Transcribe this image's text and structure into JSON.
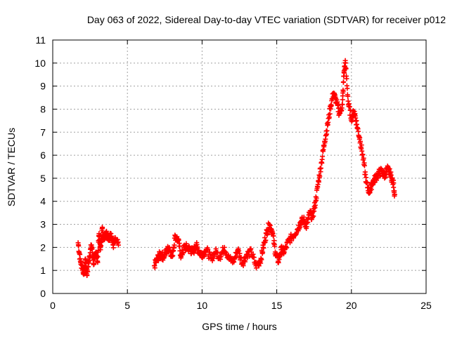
{
  "chart_data": {
    "type": "scatter",
    "title": "Day 063 of 2022, Sidereal Day-to-day VTEC variation (SDTVAR) for receiver p012",
    "xlabel": "GPS time / hours",
    "ylabel": "SDTVAR / TECUs",
    "xlim": [
      0,
      25
    ],
    "ylim": [
      0,
      11
    ],
    "xticks": [
      "0",
      "5",
      "10",
      "15",
      "20",
      "25"
    ],
    "yticks": [
      "0",
      "1",
      "2",
      "3",
      "4",
      "5",
      "6",
      "7",
      "8",
      "9",
      "10",
      "11"
    ],
    "grid": true,
    "marker": "plus",
    "color": "#ff0000",
    "series": [
      {
        "name": "SDTVAR",
        "x": [
          1.7,
          1.85,
          2.0,
          2.1,
          2.2,
          2.3,
          2.45,
          2.6,
          2.75,
          2.9,
          3.0,
          3.1,
          3.2,
          3.3,
          3.45,
          3.6,
          3.75,
          3.9,
          4.05,
          4.2,
          4.4,
          6.8,
          7.0,
          7.2,
          7.4,
          7.6,
          7.8,
          8.0,
          8.2,
          8.4,
          8.6,
          8.8,
          9.0,
          9.2,
          9.4,
          9.6,
          9.8,
          10.0,
          10.3,
          10.6,
          10.9,
          11.2,
          11.5,
          11.8,
          12.1,
          12.4,
          12.7,
          13.0,
          13.3,
          13.6,
          13.9,
          14.1,
          14.3,
          14.5,
          14.7,
          14.9,
          15.1,
          15.3,
          15.5,
          15.8,
          16.1,
          16.4,
          16.6,
          16.8,
          17.0,
          17.2,
          17.4,
          17.6,
          17.8,
          18.0,
          18.2,
          18.4,
          18.6,
          18.8,
          19.0,
          19.2,
          19.4,
          19.5,
          19.6,
          19.8,
          20.0,
          20.2,
          20.4,
          20.6,
          20.8,
          21.0,
          21.2,
          21.4,
          21.6,
          21.8,
          22.0,
          22.2,
          22.4,
          22.6,
          22.8,
          22.9
        ],
        "y": [
          2.2,
          1.4,
          1.1,
          0.9,
          1.5,
          0.8,
          1.6,
          2.1,
          1.3,
          1.8,
          1.4,
          2.6,
          1.9,
          2.8,
          2.4,
          2.7,
          2.3,
          2.6,
          2.1,
          2.3,
          2.1,
          1.2,
          1.5,
          1.7,
          1.6,
          1.8,
          2.0,
          1.6,
          2.5,
          2.3,
          1.6,
          2.0,
          2.0,
          1.9,
          1.8,
          2.1,
          1.8,
          1.7,
          1.9,
          1.5,
          1.8,
          1.6,
          2.0,
          1.5,
          1.4,
          1.9,
          1.3,
          1.7,
          1.8,
          1.2,
          1.4,
          2.0,
          2.6,
          3.0,
          2.7,
          1.8,
          1.4,
          1.9,
          1.8,
          2.3,
          2.5,
          2.8,
          3.1,
          3.2,
          2.9,
          3.5,
          3.3,
          4.0,
          4.9,
          5.7,
          6.6,
          7.3,
          8.1,
          8.7,
          8.3,
          7.8,
          8.2,
          9.6,
          10.0,
          8.2,
          7.6,
          7.9,
          7.2,
          6.6,
          5.8,
          4.8,
          4.4,
          4.8,
          5.0,
          5.2,
          5.3,
          5.1,
          5.4,
          5.2,
          4.8,
          4.3
        ]
      }
    ]
  }
}
